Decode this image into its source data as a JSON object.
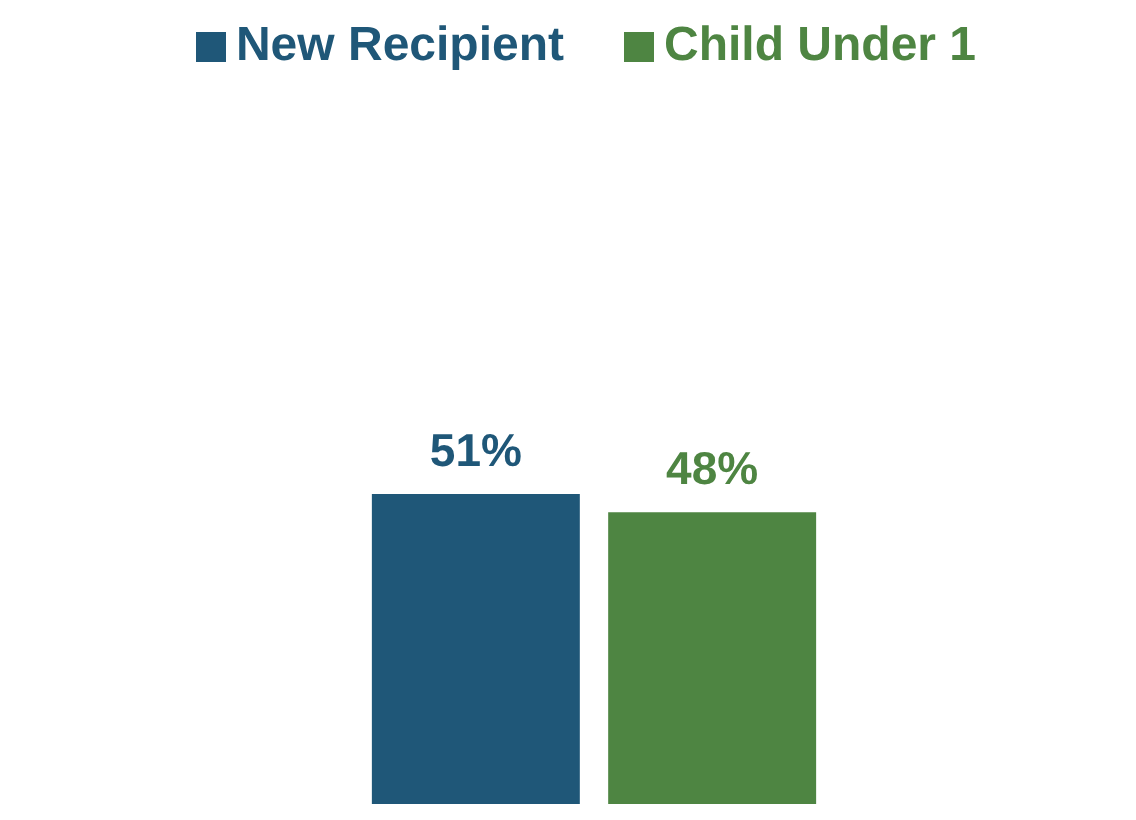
{
  "chart_data": {
    "type": "bar",
    "categories": [
      null
    ],
    "series": [
      {
        "name": "New Recipient",
        "color": "#1f5778",
        "values": [
          51
        ],
        "value_labels": [
          "51%"
        ]
      },
      {
        "name": "Child Under 1",
        "color": "#4e8542",
        "values": [
          48
        ],
        "value_labels": [
          "48%"
        ]
      }
    ],
    "legend": "top"
  }
}
